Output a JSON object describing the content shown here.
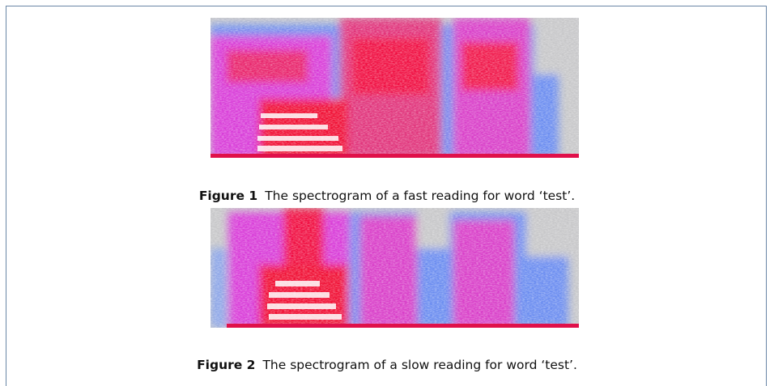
{
  "figures": [
    {
      "label": "Figure 1",
      "caption": "The spectrogram of a fast reading for word ‘test’."
    },
    {
      "label": "Figure 2",
      "caption": "The spectrogram of a slow reading for word ‘test’."
    }
  ]
}
